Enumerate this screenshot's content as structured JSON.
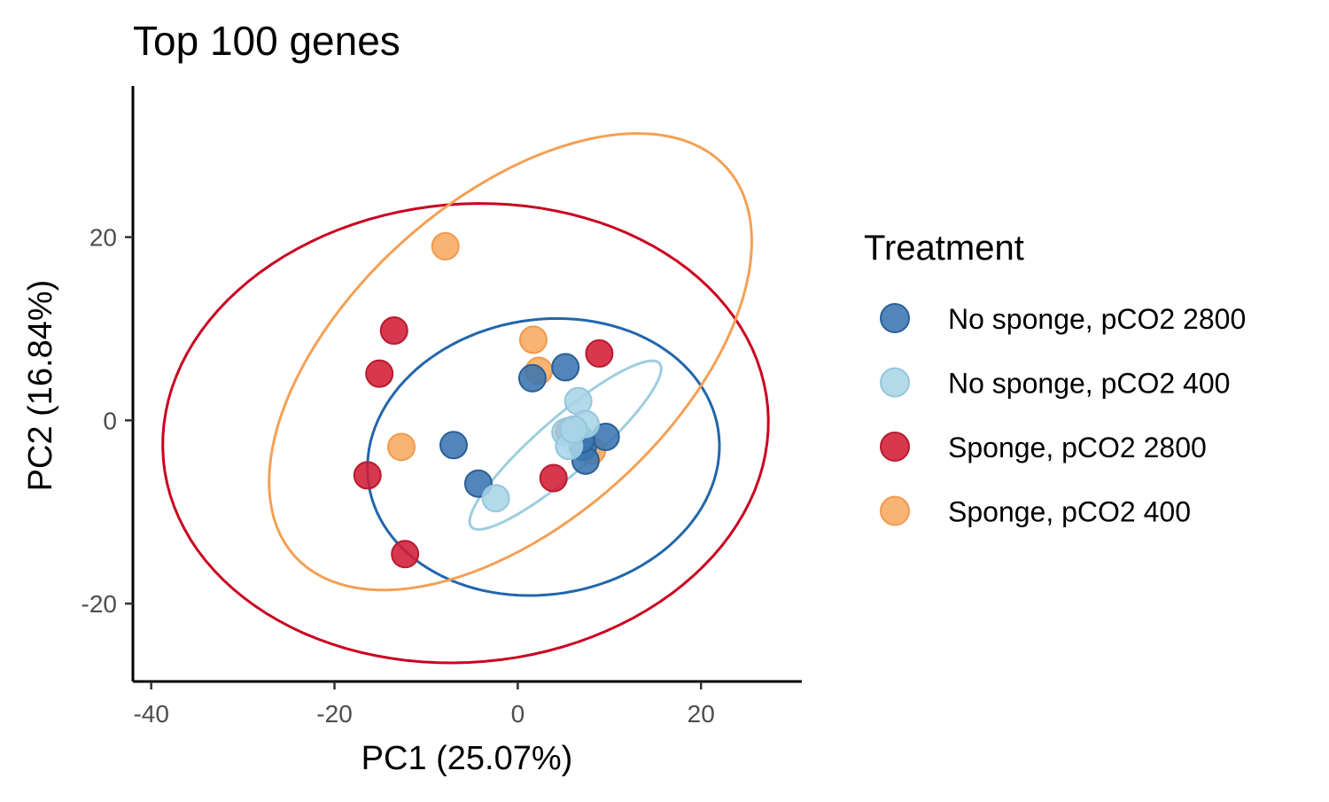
{
  "chart_data": {
    "type": "scatter",
    "title": "Top 100 genes",
    "xlabel": "PC1 (25.07%)",
    "ylabel": "PC2 (16.84%)",
    "xlim": [
      -42,
      31
    ],
    "ylim": [
      -28.5,
      36.5
    ],
    "x_ticks": [
      -40,
      -20,
      0,
      20
    ],
    "y_ticks": [
      -20,
      0,
      20
    ],
    "x_tick_labels": [
      "-40",
      "-20",
      "0",
      "20"
    ],
    "y_tick_labels": [
      "-20",
      "0",
      "20"
    ],
    "grid": false,
    "legend": {
      "title": "Treatment",
      "position": "right"
    },
    "series": [
      {
        "name": "No sponge, pCO2 2800",
        "color": "#2166ac",
        "points": [
          [
            5.2,
            5.8
          ],
          [
            1.6,
            4.6
          ],
          [
            -7.0,
            -2.7
          ],
          [
            -4.3,
            -6.9
          ],
          [
            7.1,
            -2.9
          ],
          [
            7.4,
            -4.4
          ],
          [
            9.6,
            -1.8
          ],
          [
            6.9,
            -2.1
          ]
        ],
        "ellipse": {
          "cx": 2.8,
          "cy": -4.0,
          "rx": 19.3,
          "ry": 15.0,
          "angle_deg": 9
        }
      },
      {
        "name": "No sponge, pCO2 400",
        "color": "#92c5de",
        "points": [
          [
            6.6,
            2.1
          ],
          [
            7.4,
            -0.4
          ],
          [
            5.2,
            -1.3
          ],
          [
            5.6,
            -2.8
          ],
          [
            6.1,
            -1.0
          ],
          [
            -2.4,
            -8.5
          ]
        ],
        "ellipse": {
          "cx": 5.2,
          "cy": -2.7,
          "rx": 13.6,
          "ry": 3.0,
          "angle_deg": 41
        }
      },
      {
        "name": "Sponge, pCO2 2800",
        "color": "#ca0020",
        "points": [
          [
            -13.5,
            9.8
          ],
          [
            -15.1,
            5.1
          ],
          [
            -16.4,
            -6.0
          ],
          [
            -12.3,
            -14.6
          ],
          [
            8.9,
            7.3
          ],
          [
            3.9,
            -6.3
          ],
          [
            5.6,
            -1.2
          ]
        ],
        "ellipse": {
          "cx": -5.7,
          "cy": -1.4,
          "rx": 33.1,
          "ry": 25.0,
          "angle_deg": 5
        }
      },
      {
        "name": "Sponge, pCO2 400",
        "color": "#f4a582",
        "points": [
          [
            -7.9,
            19.0
          ],
          [
            1.7,
            8.8
          ],
          [
            2.3,
            5.4
          ],
          [
            -12.7,
            -2.9
          ],
          [
            8.1,
            -3.3
          ]
        ],
        "ellipse": {
          "cx": -0.8,
          "cy": 6.4,
          "rx": 31.7,
          "ry": 17.6,
          "angle_deg": 42
        }
      }
    ]
  }
}
